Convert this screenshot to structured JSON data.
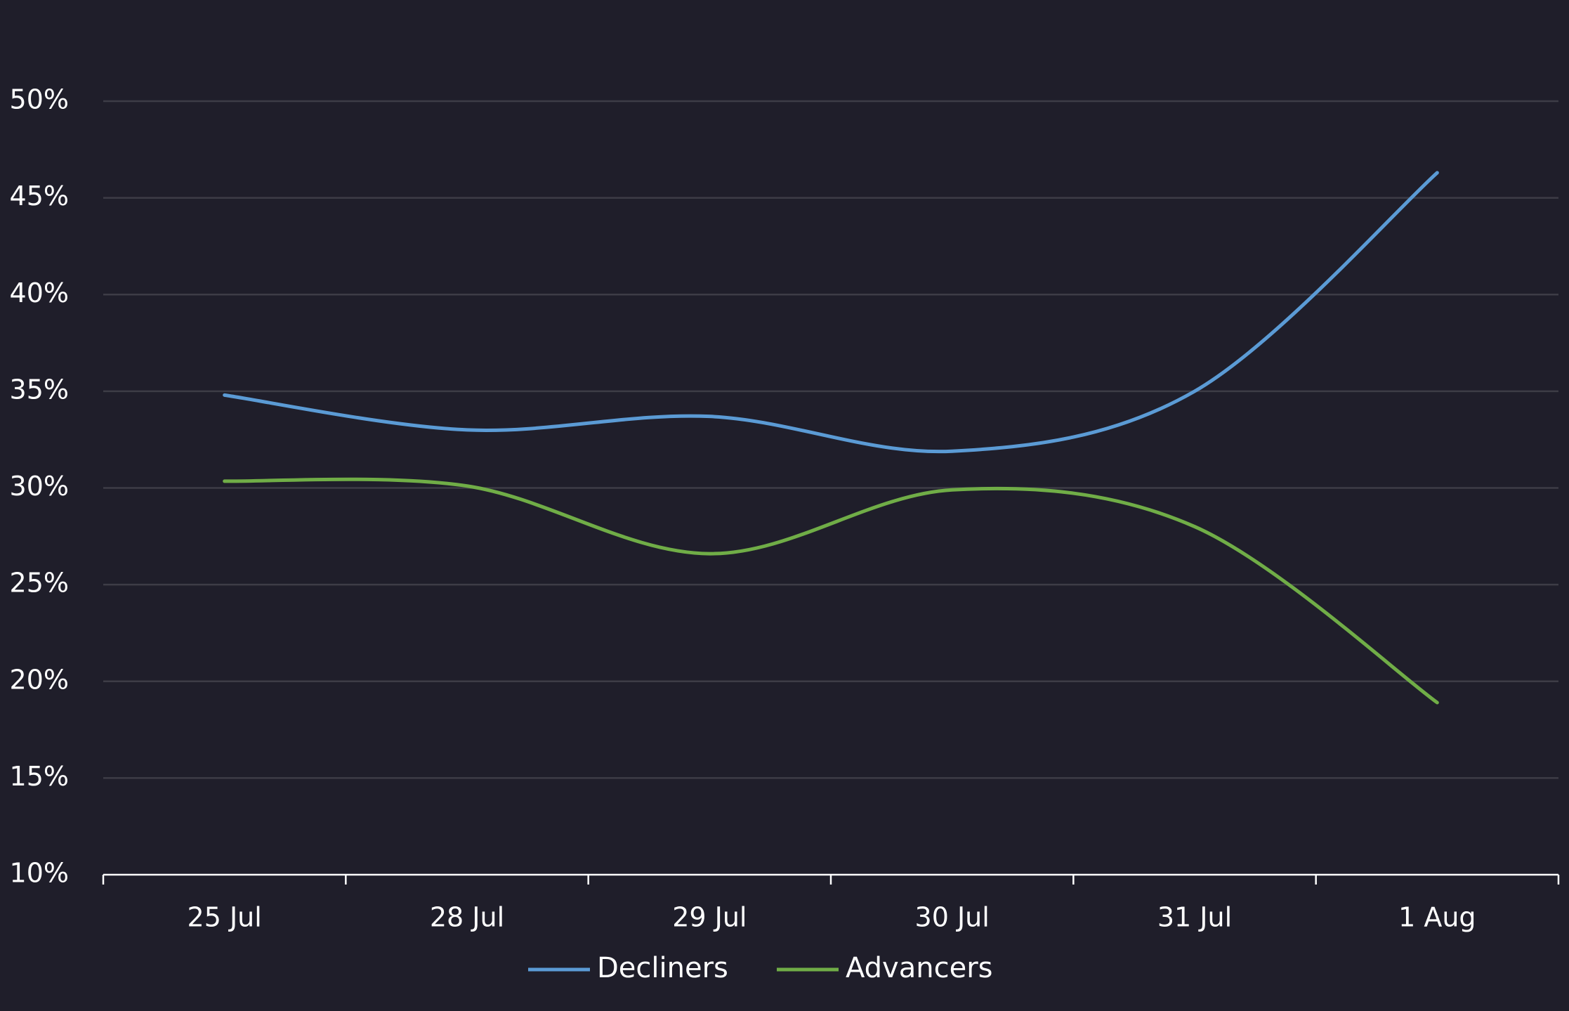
{
  "chart_data": {
    "type": "line",
    "categories": [
      "25 Jul",
      "28 Jul",
      "29 Jul",
      "30 Jul",
      "31 Jul",
      "1 Aug"
    ],
    "series": [
      {
        "name": "Decliners",
        "color": "#5b9bd5",
        "values": [
          34.8,
          33.0,
          33.7,
          31.9,
          35.0,
          46.3
        ]
      },
      {
        "name": "Advancers",
        "color": "#70ad47",
        "values": [
          30.35,
          30.1,
          26.6,
          29.9,
          28.0,
          18.9
        ]
      }
    ],
    "y_ticks": [
      "10%",
      "15%",
      "20%",
      "25%",
      "30%",
      "35%",
      "40%",
      "45%",
      "50%"
    ],
    "ylim": [
      10,
      50
    ],
    "grid": true,
    "legend_position": "bottom",
    "title": "",
    "xlabel": "",
    "ylabel": ""
  }
}
